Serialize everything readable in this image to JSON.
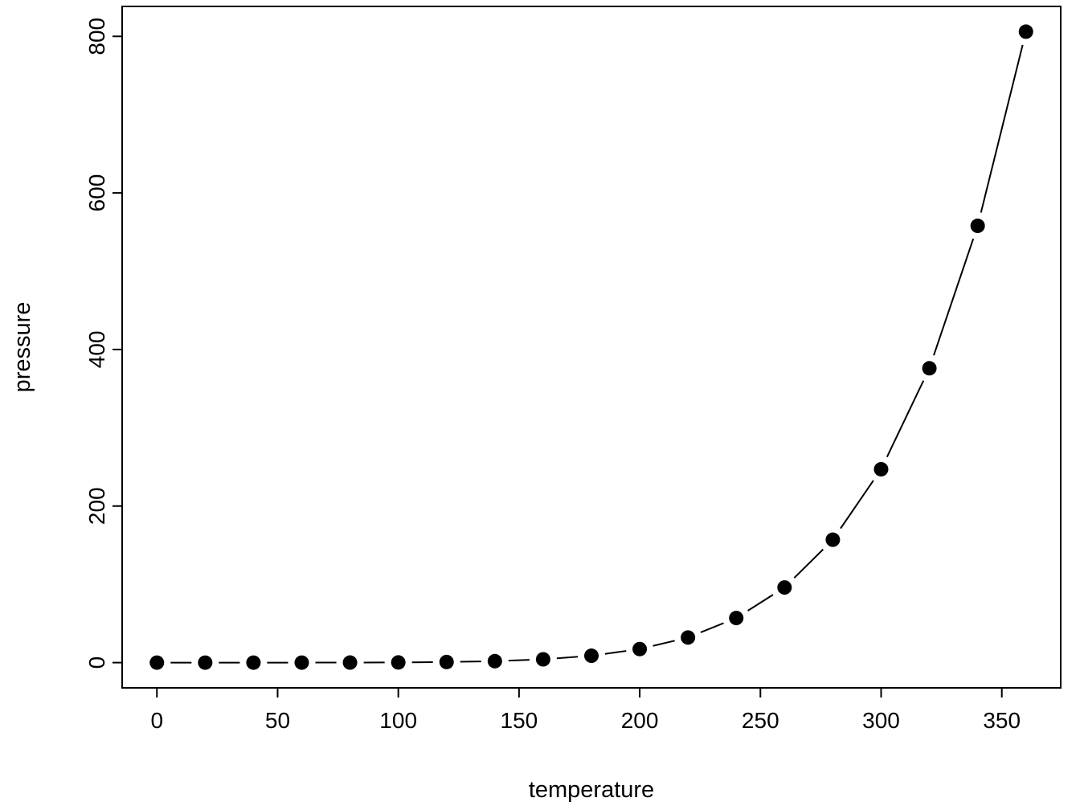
{
  "chart_data": {
    "type": "scatter",
    "plot_style": "points joined by line segments with gaps (R type='b')",
    "title": "",
    "xlabel": "temperature",
    "ylabel": "pressure",
    "x": [
      0,
      20,
      40,
      60,
      80,
      100,
      120,
      140,
      160,
      180,
      200,
      220,
      240,
      260,
      280,
      300,
      320,
      340,
      360
    ],
    "y": [
      0.0002,
      0.0012,
      0.006,
      0.03,
      0.09,
      0.27,
      0.75,
      1.85,
      4.2,
      8.8,
      17.3,
      32.1,
      57,
      96,
      157,
      247,
      376,
      558,
      806
    ],
    "x_ticks": [
      0,
      50,
      100,
      150,
      200,
      250,
      300,
      350
    ],
    "y_ticks": [
      0,
      200,
      400,
      600,
      800
    ],
    "xlim": [
      -14.4,
      374.4
    ],
    "ylim": [
      -32.24,
      838.24
    ],
    "grid": false,
    "legend": "none",
    "marker": "filled-circle",
    "color": "#000000",
    "background": "#ffffff"
  }
}
